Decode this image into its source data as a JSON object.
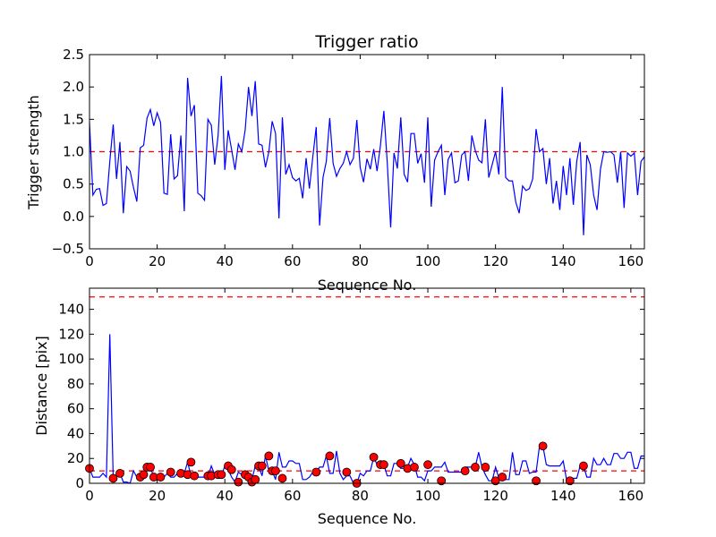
{
  "chart_data": [
    {
      "type": "line",
      "title": "Trigger ratio",
      "xlabel": "Sequence No.",
      "ylabel": "Trigger strength",
      "xlim": [
        0,
        164
      ],
      "ylim": [
        -0.5,
        2.5
      ],
      "xticks": [
        0,
        20,
        40,
        60,
        80,
        100,
        120,
        140,
        160
      ],
      "yticks": [
        -0.5,
        0.0,
        0.5,
        1.0,
        1.5,
        2.0,
        2.5
      ],
      "ytick_labels": [
        "−0.5",
        "0.0",
        "0.5",
        "1.0",
        "1.5",
        "2.0",
        "2.5"
      ],
      "threshold": 1.0,
      "colors": {
        "series": "#0000ff",
        "threshold": "#ff0000"
      },
      "series": [
        {
          "name": "Trigger strength",
          "values": [
            1.45,
            0.33,
            0.42,
            0.43,
            0.17,
            0.2,
            0.85,
            1.42,
            0.58,
            1.15,
            0.05,
            0.77,
            0.7,
            0.45,
            0.23,
            1.06,
            1.1,
            1.52,
            1.65,
            1.4,
            1.6,
            1.45,
            0.36,
            0.34,
            1.27,
            0.58,
            0.63,
            1.25,
            0.08,
            2.14,
            1.55,
            1.72,
            0.36,
            0.32,
            0.25,
            1.5,
            1.41,
            0.8,
            1.25,
            2.17,
            0.72,
            1.33,
            1.03,
            0.72,
            1.12,
            1.0,
            1.33,
            2.0,
            1.55,
            2.09,
            1.12,
            1.1,
            0.76,
            1.0,
            1.47,
            1.28,
            -0.03,
            1.53,
            0.65,
            0.8,
            0.6,
            0.55,
            0.59,
            0.28,
            0.9,
            0.43,
            0.92,
            1.38,
            -0.14,
            0.6,
            0.85,
            1.52,
            0.82,
            0.62,
            0.74,
            0.82,
            1.0,
            0.8,
            0.9,
            1.49,
            0.76,
            0.53,
            0.89,
            0.73,
            1.04,
            0.7,
            1.1,
            1.63,
            0.83,
            -0.17,
            0.98,
            0.74,
            1.53,
            0.65,
            0.53,
            1.28,
            1.28,
            0.82,
            0.97,
            0.52,
            1.53,
            0.15,
            0.87,
            1.0,
            1.1,
            0.33,
            0.88,
            0.98,
            0.52,
            0.55,
            0.95,
            1.0,
            0.55,
            1.25,
            1.02,
            0.87,
            0.83,
            1.5,
            0.6,
            0.8,
            1.0,
            0.65,
            2.0,
            0.6,
            0.55,
            0.55,
            0.22,
            0.05,
            0.47,
            0.4,
            0.43,
            0.58,
            1.35,
            1.0,
            1.05,
            0.5,
            0.9,
            0.2,
            0.55,
            0.1,
            0.78,
            0.33,
            0.9,
            0.18,
            0.85,
            1.15,
            -0.29,
            0.95,
            0.8,
            0.33,
            0.1,
            0.73,
            1.0,
            0.99,
            1.0,
            0.95,
            0.52,
            1.0,
            0.13,
            0.98,
            0.93,
            0.98,
            0.33,
            0.85,
            0.92
          ]
        }
      ]
    },
    {
      "type": "line",
      "title": "",
      "xlabel": "Sequence No.",
      "ylabel": "Distance [pix]",
      "xlim": [
        0,
        164
      ],
      "ylim": [
        0,
        157
      ],
      "xticks": [
        0,
        20,
        40,
        60,
        80,
        100,
        120,
        140,
        160
      ],
      "yticks": [
        0,
        20,
        40,
        60,
        80,
        100,
        120,
        140
      ],
      "ytick_labels": [
        "0",
        "20",
        "40",
        "60",
        "80",
        "100",
        "120",
        "140"
      ],
      "thresholds": [
        10,
        150
      ],
      "colors": {
        "series": "#0000ff",
        "threshold": "#ff0000",
        "marker": "#ff0000"
      },
      "series": [
        {
          "name": "Distance",
          "values": [
            12,
            5,
            5,
            5,
            8,
            5,
            120,
            4,
            5,
            8,
            1,
            1,
            0,
            10,
            5,
            5,
            7,
            13,
            13,
            5,
            5,
            6,
            5,
            8,
            5,
            5,
            8,
            8,
            8,
            17,
            6,
            5,
            5,
            5,
            5,
            5,
            14,
            7,
            7,
            6,
            14,
            11,
            5,
            1,
            9,
            7,
            5,
            1,
            3,
            14,
            14,
            6,
            22,
            10,
            10,
            3,
            25,
            13,
            13,
            18,
            18,
            16,
            16,
            3,
            3,
            5,
            9,
            9,
            13,
            13,
            22,
            8,
            8,
            26,
            8,
            3,
            6,
            6,
            0,
            0,
            8,
            6,
            10,
            10,
            21,
            15,
            15,
            15,
            6,
            6,
            16,
            16,
            12,
            12,
            13,
            20,
            15,
            5,
            5,
            2,
            10,
            10,
            13,
            13,
            13,
            17,
            9,
            9,
            9,
            9,
            9,
            13,
            13,
            13,
            13,
            25,
            13,
            7,
            2,
            2,
            13,
            4,
            4,
            3,
            3,
            25,
            7,
            7,
            18,
            18,
            8,
            9,
            9,
            30,
            30,
            15,
            14,
            14,
            14,
            14,
            18,
            3,
            3,
            4,
            4,
            14,
            14,
            5,
            5,
            20,
            15,
            15,
            20,
            15,
            15,
            24,
            24,
            20,
            20,
            25,
            25,
            12,
            12,
            22,
            22
          ]
        }
      ],
      "markers": [
        {
          "x": 0,
          "y": 12
        },
        {
          "x": 7,
          "y": 4
        },
        {
          "x": 9,
          "y": 8
        },
        {
          "x": 15,
          "y": 5
        },
        {
          "x": 16,
          "y": 7
        },
        {
          "x": 17,
          "y": 13
        },
        {
          "x": 18,
          "y": 13
        },
        {
          "x": 19,
          "y": 5
        },
        {
          "x": 21,
          "y": 5
        },
        {
          "x": 24,
          "y": 9
        },
        {
          "x": 27,
          "y": 8
        },
        {
          "x": 29,
          "y": 7
        },
        {
          "x": 30,
          "y": 17
        },
        {
          "x": 31,
          "y": 6
        },
        {
          "x": 35,
          "y": 6
        },
        {
          "x": 36,
          "y": 6
        },
        {
          "x": 38,
          "y": 7
        },
        {
          "x": 39,
          "y": 7
        },
        {
          "x": 41,
          "y": 14
        },
        {
          "x": 42,
          "y": 11
        },
        {
          "x": 44,
          "y": 1
        },
        {
          "x": 46,
          "y": 7
        },
        {
          "x": 47,
          "y": 5
        },
        {
          "x": 48,
          "y": 1
        },
        {
          "x": 49,
          "y": 3
        },
        {
          "x": 50,
          "y": 14
        },
        {
          "x": 51,
          "y": 14
        },
        {
          "x": 53,
          "y": 22
        },
        {
          "x": 54,
          "y": 10
        },
        {
          "x": 55,
          "y": 10
        },
        {
          "x": 57,
          "y": 4
        },
        {
          "x": 67,
          "y": 9
        },
        {
          "x": 71,
          "y": 22
        },
        {
          "x": 76,
          "y": 9
        },
        {
          "x": 79,
          "y": 0
        },
        {
          "x": 84,
          "y": 21
        },
        {
          "x": 86,
          "y": 15
        },
        {
          "x": 87,
          "y": 15
        },
        {
          "x": 92,
          "y": 16
        },
        {
          "x": 94,
          "y": 12
        },
        {
          "x": 96,
          "y": 13
        },
        {
          "x": 100,
          "y": 15
        },
        {
          "x": 104,
          "y": 2
        },
        {
          "x": 111,
          "y": 10
        },
        {
          "x": 114,
          "y": 13
        },
        {
          "x": 117,
          "y": 13
        },
        {
          "x": 120,
          "y": 2
        },
        {
          "x": 122,
          "y": 5
        },
        {
          "x": 132,
          "y": 2
        },
        {
          "x": 134,
          "y": 30
        },
        {
          "x": 142,
          "y": 2
        },
        {
          "x": 146,
          "y": 14
        }
      ]
    }
  ]
}
